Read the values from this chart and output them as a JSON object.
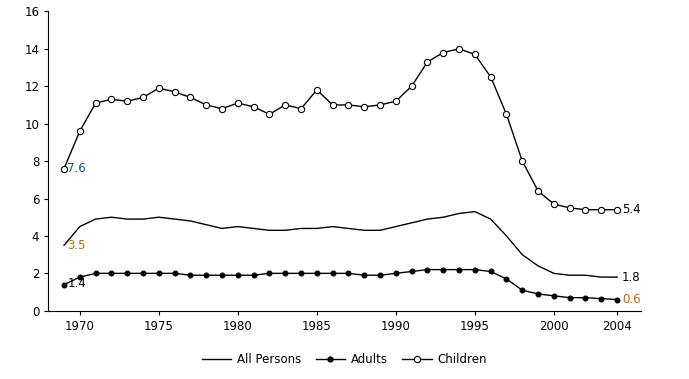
{
  "years": [
    1969,
    1970,
    1971,
    1972,
    1973,
    1974,
    1975,
    1976,
    1977,
    1978,
    1979,
    1980,
    1981,
    1982,
    1983,
    1984,
    1985,
    1986,
    1987,
    1988,
    1989,
    1990,
    1991,
    1992,
    1993,
    1994,
    1995,
    1996,
    1997,
    1998,
    1999,
    2000,
    2001,
    2002,
    2003,
    2004
  ],
  "all_persons": [
    3.5,
    4.5,
    4.9,
    5.0,
    4.9,
    4.9,
    5.0,
    4.9,
    4.8,
    4.6,
    4.4,
    4.5,
    4.4,
    4.3,
    4.3,
    4.4,
    4.4,
    4.5,
    4.4,
    4.3,
    4.3,
    4.5,
    4.7,
    4.9,
    5.0,
    5.2,
    5.3,
    4.9,
    4.0,
    3.0,
    2.4,
    2.0,
    1.9,
    1.9,
    1.8,
    1.8
  ],
  "adults": [
    1.4,
    1.8,
    2.0,
    2.0,
    2.0,
    2.0,
    2.0,
    2.0,
    1.9,
    1.9,
    1.9,
    1.9,
    1.9,
    2.0,
    2.0,
    2.0,
    2.0,
    2.0,
    2.0,
    1.9,
    1.9,
    2.0,
    2.1,
    2.2,
    2.2,
    2.2,
    2.2,
    2.1,
    1.7,
    1.1,
    0.9,
    0.8,
    0.7,
    0.7,
    0.65,
    0.6
  ],
  "children": [
    7.6,
    9.6,
    11.1,
    11.3,
    11.2,
    11.4,
    11.9,
    11.7,
    11.4,
    11.0,
    10.8,
    11.1,
    10.9,
    10.5,
    11.0,
    10.8,
    11.8,
    11.0,
    11.0,
    10.9,
    11.0,
    11.2,
    12.0,
    13.3,
    13.8,
    14.0,
    13.7,
    12.5,
    10.5,
    8.0,
    6.4,
    5.7,
    5.5,
    5.4,
    5.4,
    5.4
  ],
  "ann_left_children_x": 1969,
  "ann_left_children_y": 7.6,
  "ann_left_children_val": "7.6",
  "ann_left_children_color": "#1f4788",
  "ann_left_all_x": 1969,
  "ann_left_all_y": 3.5,
  "ann_left_all_val": "3.5",
  "ann_left_all_color": "#cc6600",
  "ann_left_adults_x": 1969,
  "ann_left_adults_y": 1.4,
  "ann_left_adults_val": "1.4",
  "ann_left_adults_color": "#000000",
  "ann_right_children_x": 2004,
  "ann_right_children_y": 5.4,
  "ann_right_children_val": "5.4",
  "ann_right_children_color": "#000000",
  "ann_right_all_x": 2004,
  "ann_right_all_y": 1.8,
  "ann_right_all_val": "1.8",
  "ann_right_all_color": "#000000",
  "ann_right_adults_x": 2004,
  "ann_right_adults_y": 0.6,
  "ann_right_adults_val": "0.6",
  "ann_right_adults_color": "#cc6600",
  "xlim": [
    1968.0,
    2005.5
  ],
  "ylim": [
    0,
    16
  ],
  "yticks": [
    0,
    2,
    4,
    6,
    8,
    10,
    12,
    14,
    16
  ],
  "xticks": [
    1970,
    1975,
    1980,
    1985,
    1990,
    1995,
    2000,
    2004
  ],
  "legend_labels": [
    "All Persons",
    "Adults",
    "Children"
  ],
  "figsize": [
    6.89,
    3.79
  ],
  "dpi": 100
}
